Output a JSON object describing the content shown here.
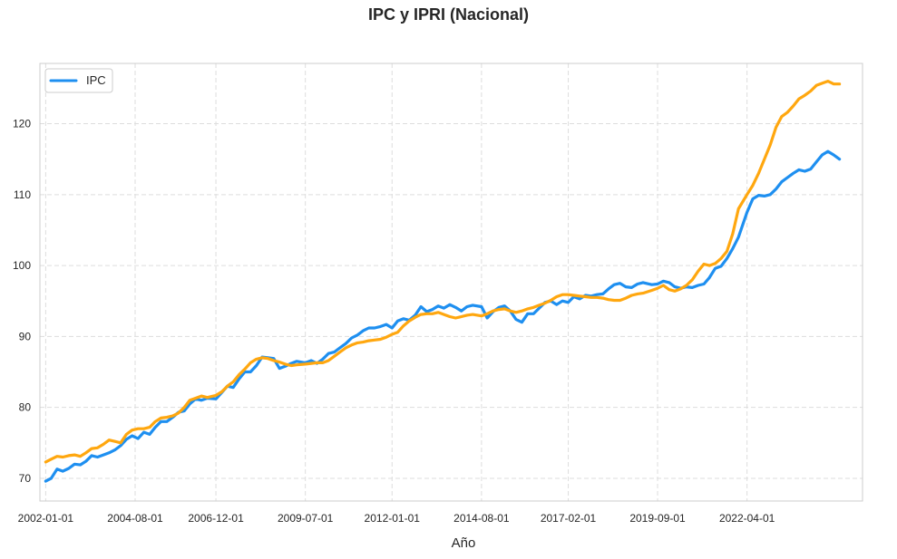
{
  "chart_data": {
    "type": "line",
    "title": "IPC y IPRI (Nacional)",
    "xlabel": "Año",
    "ylabel": "",
    "x_range": [
      "2001-11-01",
      "2025-08-01"
    ],
    "ylim": [
      66.8,
      128.5
    ],
    "grid": true,
    "legend_position": "top-left",
    "x_ticks": [
      "2002-01-01",
      "2004-08-01",
      "2006-12-01",
      "2009-07-01",
      "2012-01-01",
      "2014-08-01",
      "2017-02-01",
      "2019-09-01",
      "2022-04-01"
    ],
    "y_ticks": [
      70,
      80,
      90,
      100,
      110,
      120
    ],
    "series": [
      {
        "name": "IPC",
        "color": "#1E8FF0",
        "in_legend": true,
        "points": [
          [
            "2002-01-01",
            69.6
          ],
          [
            "2002-03-01",
            70.0
          ],
          [
            "2002-05-01",
            71.3
          ],
          [
            "2002-07-01",
            71.0
          ],
          [
            "2002-09-01",
            71.4
          ],
          [
            "2002-11-01",
            72.0
          ],
          [
            "2003-01-01",
            71.9
          ],
          [
            "2003-03-01",
            72.4
          ],
          [
            "2003-05-01",
            73.2
          ],
          [
            "2003-07-01",
            73.0
          ],
          [
            "2003-09-01",
            73.3
          ],
          [
            "2003-11-01",
            73.6
          ],
          [
            "2004-01-01",
            74.0
          ],
          [
            "2004-03-01",
            74.6
          ],
          [
            "2004-05-01",
            75.5
          ],
          [
            "2004-07-01",
            76.0
          ],
          [
            "2004-09-01",
            75.6
          ],
          [
            "2004-11-01",
            76.5
          ],
          [
            "2005-01-01",
            76.2
          ],
          [
            "2005-03-01",
            77.2
          ],
          [
            "2005-05-01",
            78.0
          ],
          [
            "2005-07-01",
            78.0
          ],
          [
            "2005-09-01",
            78.6
          ],
          [
            "2005-11-01",
            79.3
          ],
          [
            "2006-01-01",
            79.5
          ],
          [
            "2006-03-01",
            80.5
          ],
          [
            "2006-05-01",
            81.2
          ],
          [
            "2006-07-01",
            81.0
          ],
          [
            "2006-09-01",
            81.3
          ],
          [
            "2006-12-01",
            81.2
          ],
          [
            "2007-02-01",
            82.1
          ],
          [
            "2007-04-01",
            83.0
          ],
          [
            "2007-06-01",
            82.8
          ],
          [
            "2007-08-01",
            84.0
          ],
          [
            "2007-10-01",
            85.0
          ],
          [
            "2007-12-01",
            85.0
          ],
          [
            "2008-02-01",
            85.9
          ],
          [
            "2008-04-01",
            87.1
          ],
          [
            "2008-06-01",
            87.0
          ],
          [
            "2008-08-01",
            86.9
          ],
          [
            "2008-10-01",
            85.5
          ],
          [
            "2008-12-01",
            85.8
          ],
          [
            "2009-02-01",
            86.2
          ],
          [
            "2009-04-01",
            86.5
          ],
          [
            "2009-07-01",
            86.3
          ],
          [
            "2009-09-01",
            86.6
          ],
          [
            "2009-11-01",
            86.2
          ],
          [
            "2010-01-01",
            86.8
          ],
          [
            "2010-03-01",
            87.6
          ],
          [
            "2010-05-01",
            87.8
          ],
          [
            "2010-07-01",
            88.4
          ],
          [
            "2010-09-01",
            89.0
          ],
          [
            "2010-11-01",
            89.8
          ],
          [
            "2011-01-01",
            90.2
          ],
          [
            "2011-03-01",
            90.8
          ],
          [
            "2011-05-01",
            91.2
          ],
          [
            "2011-07-01",
            91.2
          ],
          [
            "2011-09-01",
            91.4
          ],
          [
            "2011-11-01",
            91.7
          ],
          [
            "2012-01-01",
            91.2
          ],
          [
            "2012-03-01",
            92.2
          ],
          [
            "2012-05-01",
            92.5
          ],
          [
            "2012-07-01",
            92.3
          ],
          [
            "2012-09-01",
            93.0
          ],
          [
            "2012-11-01",
            94.2
          ],
          [
            "2013-01-01",
            93.5
          ],
          [
            "2013-03-01",
            93.8
          ],
          [
            "2013-05-01",
            94.3
          ],
          [
            "2013-07-01",
            94.0
          ],
          [
            "2013-09-01",
            94.5
          ],
          [
            "2013-11-01",
            94.1
          ],
          [
            "2014-01-01",
            93.6
          ],
          [
            "2014-03-01",
            94.2
          ],
          [
            "2014-05-01",
            94.4
          ],
          [
            "2014-08-01",
            94.2
          ],
          [
            "2014-10-01",
            92.6
          ],
          [
            "2014-12-01",
            93.5
          ],
          [
            "2015-02-01",
            94.1
          ],
          [
            "2015-04-01",
            94.3
          ],
          [
            "2015-06-01",
            93.6
          ],
          [
            "2015-08-01",
            92.4
          ],
          [
            "2015-10-01",
            92.0
          ],
          [
            "2015-12-01",
            93.2
          ],
          [
            "2016-02-01",
            93.2
          ],
          [
            "2016-04-01",
            94.0
          ],
          [
            "2016-06-01",
            94.8
          ],
          [
            "2016-08-01",
            95.0
          ],
          [
            "2016-10-01",
            94.5
          ],
          [
            "2016-12-01",
            95.0
          ],
          [
            "2017-02-01",
            94.8
          ],
          [
            "2017-04-01",
            95.6
          ],
          [
            "2017-06-01",
            95.3
          ],
          [
            "2017-08-01",
            95.8
          ],
          [
            "2017-10-01",
            95.7
          ],
          [
            "2017-12-01",
            95.9
          ],
          [
            "2018-02-01",
            96.0
          ],
          [
            "2018-04-01",
            96.7
          ],
          [
            "2018-06-01",
            97.3
          ],
          [
            "2018-08-01",
            97.5
          ],
          [
            "2018-10-01",
            97.0
          ],
          [
            "2018-12-01",
            96.9
          ],
          [
            "2019-02-01",
            97.4
          ],
          [
            "2019-04-01",
            97.6
          ],
          [
            "2019-07-01",
            97.3
          ],
          [
            "2019-09-01",
            97.4
          ],
          [
            "2019-11-01",
            97.8
          ],
          [
            "2020-01-01",
            97.6
          ],
          [
            "2020-03-01",
            97.0
          ],
          [
            "2020-05-01",
            96.8
          ],
          [
            "2020-07-01",
            97.0
          ],
          [
            "2020-09-01",
            96.9
          ],
          [
            "2020-11-01",
            97.2
          ],
          [
            "2021-01-01",
            97.4
          ],
          [
            "2021-03-01",
            98.3
          ],
          [
            "2021-05-01",
            99.6
          ],
          [
            "2021-07-01",
            99.9
          ],
          [
            "2021-09-01",
            101.0
          ],
          [
            "2021-11-01",
            102.4
          ],
          [
            "2022-01-01",
            104.0
          ],
          [
            "2022-04-01",
            107.5
          ],
          [
            "2022-06-01",
            109.4
          ],
          [
            "2022-08-01",
            109.9
          ],
          [
            "2022-10-01",
            109.8
          ],
          [
            "2022-12-01",
            110.0
          ],
          [
            "2023-02-01",
            110.8
          ],
          [
            "2023-04-01",
            111.8
          ],
          [
            "2023-06-01",
            112.4
          ],
          [
            "2023-08-01",
            113.0
          ],
          [
            "2023-10-01",
            113.5
          ],
          [
            "2023-12-01",
            113.3
          ],
          [
            "2024-02-01",
            113.6
          ],
          [
            "2024-04-01",
            114.6
          ],
          [
            "2024-06-01",
            115.6
          ],
          [
            "2024-08-01",
            116.1
          ],
          [
            "2024-10-01",
            115.6
          ],
          [
            "2024-12-01",
            115.0
          ]
        ]
      },
      {
        "name": "IPRI",
        "color": "#FFA70F",
        "in_legend": false,
        "points": [
          [
            "2002-01-01",
            72.3
          ],
          [
            "2002-03-01",
            72.7
          ],
          [
            "2002-05-01",
            73.1
          ],
          [
            "2002-07-01",
            73.0
          ],
          [
            "2002-09-01",
            73.2
          ],
          [
            "2002-11-01",
            73.3
          ],
          [
            "2003-01-01",
            73.1
          ],
          [
            "2003-03-01",
            73.6
          ],
          [
            "2003-05-01",
            74.2
          ],
          [
            "2003-07-01",
            74.3
          ],
          [
            "2003-09-01",
            74.8
          ],
          [
            "2003-11-01",
            75.4
          ],
          [
            "2004-01-01",
            75.2
          ],
          [
            "2004-03-01",
            75.0
          ],
          [
            "2004-05-01",
            76.2
          ],
          [
            "2004-07-01",
            76.8
          ],
          [
            "2004-09-01",
            77.0
          ],
          [
            "2004-11-01",
            77.0
          ],
          [
            "2005-01-01",
            77.2
          ],
          [
            "2005-03-01",
            78.0
          ],
          [
            "2005-05-01",
            78.5
          ],
          [
            "2005-07-01",
            78.6
          ],
          [
            "2005-09-01",
            78.8
          ],
          [
            "2005-11-01",
            79.2
          ],
          [
            "2006-01-01",
            80.0
          ],
          [
            "2006-03-01",
            81.0
          ],
          [
            "2006-05-01",
            81.3
          ],
          [
            "2006-07-01",
            81.6
          ],
          [
            "2006-09-01",
            81.4
          ],
          [
            "2006-12-01",
            81.7
          ],
          [
            "2007-02-01",
            82.2
          ],
          [
            "2007-04-01",
            83.0
          ],
          [
            "2007-06-01",
            83.6
          ],
          [
            "2007-08-01",
            84.6
          ],
          [
            "2007-10-01",
            85.4
          ],
          [
            "2007-12-01",
            86.3
          ],
          [
            "2008-02-01",
            86.8
          ],
          [
            "2008-04-01",
            87.0
          ],
          [
            "2008-06-01",
            86.9
          ],
          [
            "2008-08-01",
            86.6
          ],
          [
            "2008-10-01",
            86.4
          ],
          [
            "2008-12-01",
            86.1
          ],
          [
            "2009-02-01",
            85.9
          ],
          [
            "2009-04-01",
            86.0
          ],
          [
            "2009-07-01",
            86.1
          ],
          [
            "2009-09-01",
            86.2
          ],
          [
            "2009-11-01",
            86.3
          ],
          [
            "2010-01-01",
            86.3
          ],
          [
            "2010-03-01",
            86.6
          ],
          [
            "2010-05-01",
            87.2
          ],
          [
            "2010-07-01",
            87.8
          ],
          [
            "2010-09-01",
            88.4
          ],
          [
            "2010-11-01",
            88.8
          ],
          [
            "2011-01-01",
            89.1
          ],
          [
            "2011-03-01",
            89.2
          ],
          [
            "2011-05-01",
            89.4
          ],
          [
            "2011-07-01",
            89.5
          ],
          [
            "2011-09-01",
            89.6
          ],
          [
            "2011-11-01",
            89.9
          ],
          [
            "2012-01-01",
            90.3
          ],
          [
            "2012-03-01",
            90.6
          ],
          [
            "2012-05-01",
            91.5
          ],
          [
            "2012-07-01",
            92.2
          ],
          [
            "2012-09-01",
            92.7
          ],
          [
            "2012-11-01",
            93.1
          ],
          [
            "2013-01-01",
            93.2
          ],
          [
            "2013-03-01",
            93.2
          ],
          [
            "2013-05-01",
            93.4
          ],
          [
            "2013-07-01",
            93.1
          ],
          [
            "2013-09-01",
            92.8
          ],
          [
            "2013-11-01",
            92.6
          ],
          [
            "2014-01-01",
            92.8
          ],
          [
            "2014-03-01",
            93.0
          ],
          [
            "2014-05-01",
            93.1
          ],
          [
            "2014-08-01",
            92.9
          ],
          [
            "2014-10-01",
            93.2
          ],
          [
            "2014-12-01",
            93.6
          ],
          [
            "2015-02-01",
            93.8
          ],
          [
            "2015-04-01",
            93.9
          ],
          [
            "2015-06-01",
            93.6
          ],
          [
            "2015-08-01",
            93.4
          ],
          [
            "2015-10-01",
            93.6
          ],
          [
            "2015-12-01",
            93.9
          ],
          [
            "2016-02-01",
            94.1
          ],
          [
            "2016-04-01",
            94.4
          ],
          [
            "2016-06-01",
            94.7
          ],
          [
            "2016-08-01",
            95.1
          ],
          [
            "2016-10-01",
            95.6
          ],
          [
            "2016-12-01",
            95.9
          ],
          [
            "2017-02-01",
            95.9
          ],
          [
            "2017-04-01",
            95.8
          ],
          [
            "2017-06-01",
            95.7
          ],
          [
            "2017-08-01",
            95.6
          ],
          [
            "2017-10-01",
            95.5
          ],
          [
            "2017-12-01",
            95.5
          ],
          [
            "2018-02-01",
            95.4
          ],
          [
            "2018-04-01",
            95.2
          ],
          [
            "2018-06-01",
            95.1
          ],
          [
            "2018-08-01",
            95.1
          ],
          [
            "2018-10-01",
            95.4
          ],
          [
            "2018-12-01",
            95.8
          ],
          [
            "2019-02-01",
            96.0
          ],
          [
            "2019-04-01",
            96.1
          ],
          [
            "2019-07-01",
            96.5
          ],
          [
            "2019-09-01",
            96.8
          ],
          [
            "2019-11-01",
            97.2
          ],
          [
            "2020-01-01",
            96.6
          ],
          [
            "2020-03-01",
            96.4
          ],
          [
            "2020-05-01",
            96.7
          ],
          [
            "2020-07-01",
            97.2
          ],
          [
            "2020-09-01",
            98.0
          ],
          [
            "2020-11-01",
            99.2
          ],
          [
            "2021-01-01",
            100.2
          ],
          [
            "2021-03-01",
            100.0
          ],
          [
            "2021-05-01",
            100.3
          ],
          [
            "2021-07-01",
            101.0
          ],
          [
            "2021-09-01",
            102.0
          ],
          [
            "2021-11-01",
            104.5
          ],
          [
            "2022-01-01",
            108.0
          ],
          [
            "2022-04-01",
            110.0
          ],
          [
            "2022-06-01",
            111.3
          ],
          [
            "2022-08-01",
            113.0
          ],
          [
            "2022-10-01",
            115.0
          ],
          [
            "2022-12-01",
            117.0
          ],
          [
            "2023-02-01",
            119.5
          ],
          [
            "2023-04-01",
            121.0
          ],
          [
            "2023-06-01",
            121.6
          ],
          [
            "2023-08-01",
            122.5
          ],
          [
            "2023-10-01",
            123.5
          ],
          [
            "2023-12-01",
            124.0
          ],
          [
            "2024-02-01",
            124.6
          ],
          [
            "2024-04-01",
            125.4
          ],
          [
            "2024-06-01",
            125.7
          ],
          [
            "2024-08-01",
            126.0
          ],
          [
            "2024-10-01",
            125.6
          ],
          [
            "2024-12-01",
            125.6
          ]
        ]
      }
    ]
  }
}
